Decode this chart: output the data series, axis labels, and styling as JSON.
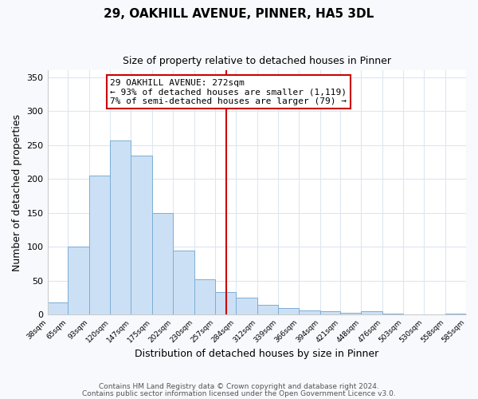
{
  "title": "29, OAKHILL AVENUE, PINNER, HA5 3DL",
  "subtitle": "Size of property relative to detached houses in Pinner",
  "xlabel": "Distribution of detached houses by size in Pinner",
  "ylabel": "Number of detached properties",
  "bar_edges": [
    38,
    65,
    93,
    120,
    147,
    175,
    202,
    230,
    257,
    284,
    312,
    339,
    366,
    394,
    421,
    448,
    476,
    503,
    530,
    558,
    585
  ],
  "bar_heights": [
    18,
    100,
    205,
    257,
    235,
    150,
    95,
    52,
    33,
    25,
    15,
    10,
    7,
    5,
    3,
    5,
    2,
    0,
    0,
    2
  ],
  "bar_color": "#cce0f5",
  "bar_edgecolor": "#7aaed6",
  "vline_x": 272,
  "vline_color": "#cc0000",
  "annotation_title": "29 OAKHILL AVENUE: 272sqm",
  "annotation_line1": "← 93% of detached houses are smaller (1,119)",
  "annotation_line2": "7% of semi-detached houses are larger (79) →",
  "annotation_box_edgecolor": "#cc0000",
  "ylim": [
    0,
    360
  ],
  "yticks": [
    0,
    50,
    100,
    150,
    200,
    250,
    300,
    350
  ],
  "footnote1": "Contains HM Land Registry data © Crown copyright and database right 2024.",
  "footnote2": "Contains public sector information licensed under the Open Government Licence v3.0.",
  "plot_bg_color": "#ffffff",
  "fig_bg_color": "#f7f9fc",
  "grid_color": "#dde6f0",
  "title_fontsize": 11,
  "subtitle_fontsize": 9
}
